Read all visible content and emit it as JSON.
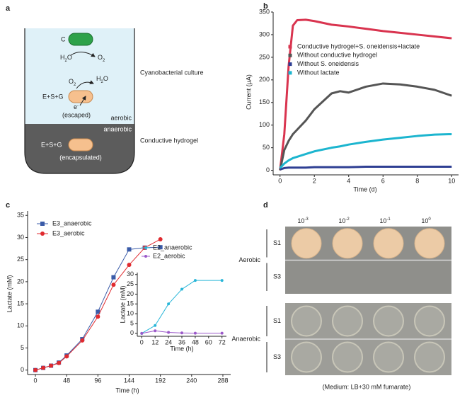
{
  "panel_labels": [
    "a",
    "b",
    "c",
    "d"
  ],
  "diagram": {
    "cell_c": "C",
    "water_top": [
      "H",
      "2",
      "O"
    ],
    "oxygen_top": [
      "O",
      "2"
    ],
    "oxygen_mid": [
      "O",
      "2"
    ],
    "water_mid": [
      "H",
      "2",
      "O"
    ],
    "culture_label": "Cyanobacterial culture",
    "escaped_strain": "E+S+G",
    "electron": [
      "e",
      "-"
    ],
    "escaped_note": "(escaped)",
    "aerobic": "aerobic",
    "anaerobic": "anaerobic",
    "hydrogel_label": "Conductive hydrogel",
    "encapsulated_strain": "E+S+G",
    "encapsulated_note": "(encapsulated)"
  },
  "chart_data": [
    {
      "type": "line",
      "x_label": "Time (d)",
      "y_label": "Current (μA)",
      "x": [
        0,
        0.25,
        0.5,
        0.75,
        1,
        1.5,
        2,
        3,
        3.5,
        4,
        5,
        6,
        7,
        8,
        9,
        10
      ],
      "series": [
        {
          "name": "Conductive hydrogel+S. oneidensis+lactate",
          "color": "#d9344f",
          "values": [
            0,
            80,
            230,
            320,
            332,
            333,
            330,
            322,
            320,
            318,
            313,
            308,
            304,
            300,
            296,
            292
          ]
        },
        {
          "name": "Without conductive hydrogel",
          "color": "#555555",
          "values": [
            0,
            45,
            65,
            80,
            90,
            110,
            135,
            170,
            175,
            172,
            185,
            192,
            190,
            185,
            178,
            165
          ]
        },
        {
          "name": "Without S. oneidensis",
          "color": "#2e3f93",
          "values": [
            2,
            5,
            6,
            6,
            6,
            6,
            7,
            7,
            7,
            7,
            8,
            8,
            8,
            8,
            8,
            8
          ]
        },
        {
          "name": "Without lactate",
          "color": "#1cb5cf",
          "values": [
            5,
            15,
            22,
            27,
            30,
            36,
            42,
            50,
            53,
            57,
            63,
            68,
            72,
            76,
            79,
            80
          ]
        }
      ],
      "xlim": [
        -0.4,
        10.4
      ],
      "ylim": [
        -10,
        350
      ],
      "xticks": [
        0,
        2,
        4,
        6,
        8,
        10
      ],
      "yticks": [
        0,
        50,
        100,
        150,
        200,
        250,
        300,
        350
      ]
    },
    {
      "type": "line",
      "x_label": "Time (h)",
      "y_label": "Lactate (mM)",
      "x": [
        0,
        12,
        24,
        36,
        48,
        72,
        96,
        120,
        144,
        168,
        192
      ],
      "series": [
        {
          "name": "E3_anaerobic",
          "color": "#3a5ba8",
          "marker": "square",
          "values": [
            0,
            0.5,
            1,
            1.7,
            3.3,
            7,
            13.2,
            21,
            27.3,
            27.7,
            27.8
          ]
        },
        {
          "name": "E3_aerobic",
          "color": "#e02a2f",
          "marker": "circle",
          "values": [
            0,
            0.5,
            1,
            1.6,
            3.1,
            6.7,
            12.1,
            19.3,
            23.8,
            27.7,
            29.6
          ]
        }
      ],
      "xlim": [
        -12,
        300
      ],
      "ylim": [
        -1,
        36
      ],
      "xticks": [
        0,
        48,
        96,
        144,
        192,
        240,
        288
      ],
      "yticks": [
        0,
        5,
        10,
        15,
        20,
        25,
        30,
        35
      ]
    },
    {
      "type": "line",
      "x_label": "Time (h)",
      "y_label": "Lactate (mM)",
      "x": [
        0,
        12,
        24,
        36,
        48,
        72
      ],
      "series": [
        {
          "name": "E2_anaerobic",
          "color": "#29b6d8",
          "marker": "circle",
          "values": [
            0,
            4,
            15,
            22.5,
            27,
            27
          ]
        },
        {
          "name": "E2_aerobic",
          "color": "#9b59c9",
          "marker": "circle",
          "values": [
            0,
            1.3,
            0.5,
            0.2,
            0.1,
            0.1
          ]
        }
      ],
      "xlim": [
        -4,
        76
      ],
      "ylim": [
        -1.5,
        31
      ],
      "xticks": [
        0,
        12,
        24,
        36,
        48,
        60,
        72
      ],
      "yticks": [
        0,
        5,
        10,
        15,
        20,
        25,
        30
      ]
    }
  ],
  "plates": {
    "dilutions": [
      [
        "10",
        "-3"
      ],
      [
        "10",
        "-2"
      ],
      [
        "10",
        "-1"
      ],
      [
        "10",
        "0"
      ]
    ],
    "conditions": [
      {
        "name": "Aerobic",
        "strains": [
          "S1",
          "S3"
        ]
      },
      {
        "name": "Anaerobic",
        "strains": [
          "S1",
          "S3"
        ]
      }
    ],
    "caption": "(Medium: LB+30 mM fumarate)"
  }
}
